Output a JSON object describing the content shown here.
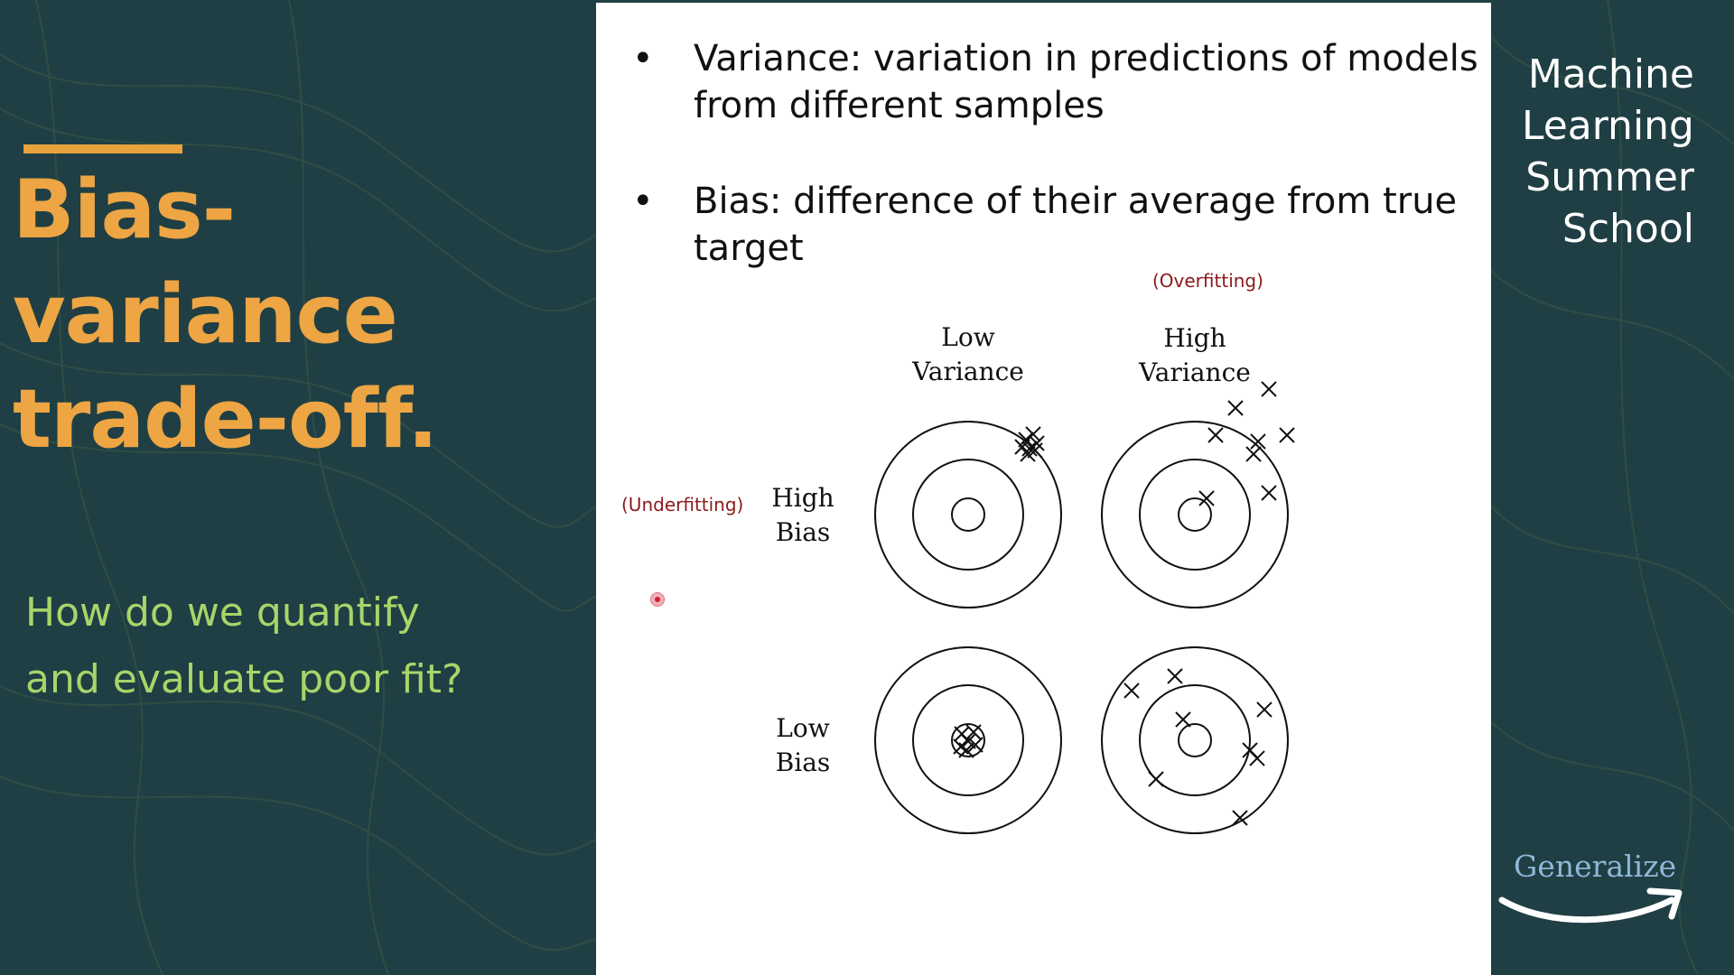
{
  "slide": {
    "title_line1": "Bias-variance",
    "title_line2": "trade-off.",
    "question_line1": "How do we quantify",
    "question_line2": "and evaluate poor fit?"
  },
  "brand": {
    "line1": "Machine",
    "line2": "Learning",
    "line3": "Summer",
    "line4": "School",
    "logo_text": "Generalize"
  },
  "bullets": [
    {
      "line1": "Variance: variation in predictions of models",
      "line2": "from different samples"
    },
    {
      "line1": "Bias: difference of their average from true",
      "line2": "target"
    }
  ],
  "diagram": {
    "overfitting_note": "(Overfitting)",
    "underfitting_note": "(Underfitting)",
    "col_low_variance_1": "Low",
    "col_low_variance_2": "Variance",
    "col_high_variance_1": "High",
    "col_high_variance_2": "Variance",
    "row_high_bias_1": "High",
    "row_high_bias_2": "Bias",
    "row_low_bias_1": "Low",
    "row_low_bias_2": "Bias"
  },
  "colors": {
    "background": "#1f3f44",
    "title": "#eea543",
    "question": "#a6d66a",
    "note": "#8b1a1a"
  }
}
